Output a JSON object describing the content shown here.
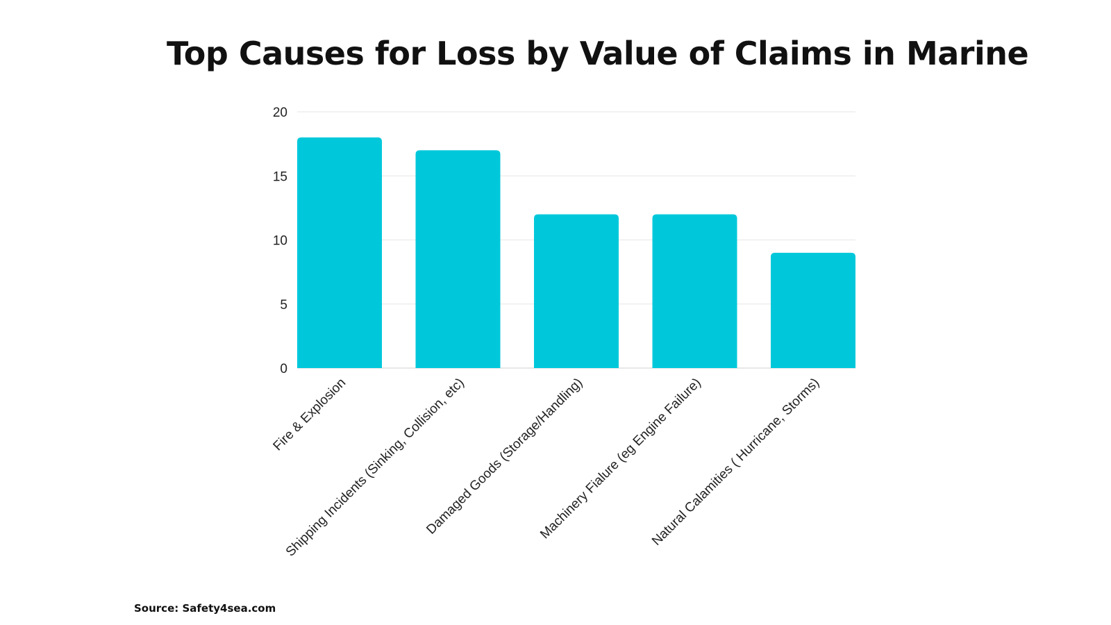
{
  "chart_data": {
    "type": "bar",
    "title": "Top Causes for Loss by Value of Claims in Marine",
    "categories": [
      "Fire & Explosion",
      "Shipping Incidents (Sinking, Collision, etc)",
      "Damaged Goods (Storage/Handling)",
      "Machinery Fialure (eg Engine Failure)",
      "Natural Calamities ( Hurricane, Storms)"
    ],
    "values": [
      18,
      17,
      12,
      12,
      9
    ],
    "ylim": [
      0,
      20
    ],
    "yticks": [
      0,
      5,
      10,
      15,
      20
    ],
    "grid": true,
    "bar_color": "#00C8DA",
    "grid_color": "#E6E6E6"
  },
  "source": "Source: Safety4sea.com"
}
